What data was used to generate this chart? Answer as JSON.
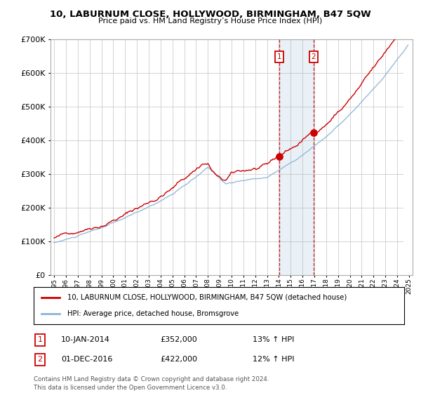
{
  "title": "10, LABURNUM CLOSE, HOLLYWOOD, BIRMINGHAM, B47 5QW",
  "subtitle": "Price paid vs. HM Land Registry’s House Price Index (HPI)",
  "ylim": [
    0,
    700000
  ],
  "yticks": [
    0,
    100000,
    200000,
    300000,
    400000,
    500000,
    600000,
    700000
  ],
  "ytick_labels": [
    "£0",
    "£100K",
    "£200K",
    "£300K",
    "£400K",
    "£500K",
    "£600K",
    "£700K"
  ],
  "hpi_color": "#8ab4d8",
  "price_color": "#cc0000",
  "sale1_year": 2014.04,
  "sale1_price": 352000,
  "sale1_price_label": "£352,000",
  "sale1_date_label": "10-JAN-2014",
  "sale1_hpi_label": "13% ↑ HPI",
  "sale2_year": 2016.92,
  "sale2_price": 422000,
  "sale2_price_label": "£422,000",
  "sale2_date_label": "01-DEC-2016",
  "sale2_hpi_label": "12% ↑ HPI",
  "legend_red_label": "10, LABURNUM CLOSE, HOLLYWOOD, BIRMINGHAM, B47 5QW (detached house)",
  "legend_blue_label": "HPI: Average price, detached house, Bromsgrove",
  "footer1": "Contains HM Land Registry data © Crown copyright and database right 2024.",
  "footer2": "This data is licensed under the Open Government Licence v3.0.",
  "background_color": "#ffffff",
  "grid_color": "#cccccc",
  "xlim_left": 1994.7,
  "xlim_right": 2025.3
}
